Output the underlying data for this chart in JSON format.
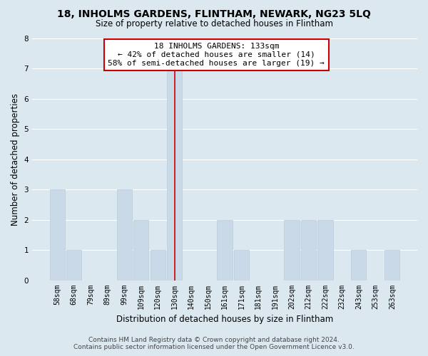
{
  "title": "18, INHOLMS GARDENS, FLINTHAM, NEWARK, NG23 5LQ",
  "subtitle": "Size of property relative to detached houses in Flintham",
  "xlabel": "Distribution of detached houses by size in Flintham",
  "ylabel": "Number of detached properties",
  "bin_labels": [
    "58sqm",
    "68sqm",
    "79sqm",
    "89sqm",
    "99sqm",
    "109sqm",
    "120sqm",
    "130sqm",
    "140sqm",
    "150sqm",
    "161sqm",
    "171sqm",
    "181sqm",
    "191sqm",
    "202sqm",
    "212sqm",
    "222sqm",
    "232sqm",
    "243sqm",
    "253sqm",
    "263sqm"
  ],
  "bar_heights": [
    3,
    1,
    0,
    0,
    3,
    2,
    1,
    7,
    0,
    0,
    2,
    1,
    0,
    0,
    2,
    2,
    2,
    0,
    1,
    0,
    1
  ],
  "bar_color": "#c9d9e8",
  "bar_edge_color": "#b8ccd8",
  "highlight_bar_index": 7,
  "highlight_line_color": "#cc0000",
  "grid_color": "#ffffff",
  "bg_color": "#dce8f0",
  "annotation_line1": "18 INHOLMS GARDENS: 133sqm",
  "annotation_line2": "← 42% of detached houses are smaller (14)",
  "annotation_line3": "58% of semi-detached houses are larger (19) →",
  "annotation_box_color": "#ffffff",
  "annotation_box_edge": "#cc0000",
  "ylim": [
    0,
    8
  ],
  "yticks": [
    0,
    1,
    2,
    3,
    4,
    5,
    6,
    7,
    8
  ],
  "footer_line1": "Contains HM Land Registry data © Crown copyright and database right 2024.",
  "footer_line2": "Contains public sector information licensed under the Open Government Licence v3.0.",
  "title_fontsize": 10,
  "subtitle_fontsize": 8.5,
  "ylabel_fontsize": 8.5,
  "xlabel_fontsize": 8.5,
  "tick_fontsize": 7,
  "annotation_fontsize": 8,
  "footer_fontsize": 6.5
}
